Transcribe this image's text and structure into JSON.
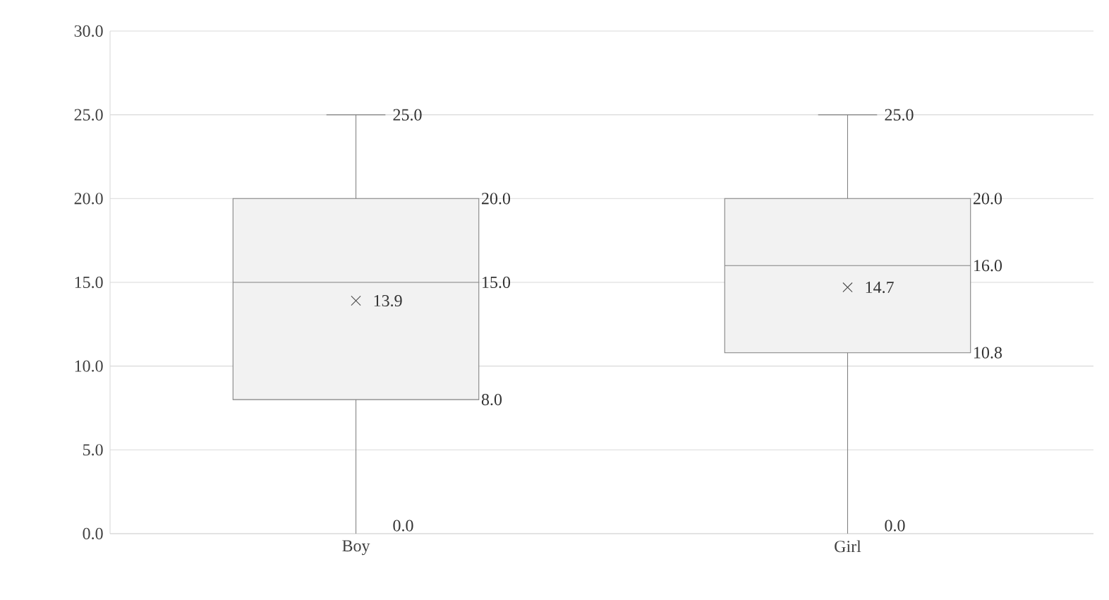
{
  "chart_data": {
    "type": "box",
    "categories": [
      "Boy",
      "Girl"
    ],
    "boxes": [
      {
        "low": 0,
        "q1": 8,
        "median": 15,
        "q3": 20,
        "high": 25,
        "mean": 13.9
      },
      {
        "low": 0,
        "q1": 10.8,
        "median": 16,
        "q3": 20,
        "high": 25,
        "mean": 14.7
      }
    ],
    "color": "#f2f2f2",
    "ylim": [
      0,
      30
    ],
    "yticks": [
      {
        "value": 0,
        "label": "0.0"
      },
      {
        "value": 5,
        "label": "5.0"
      },
      {
        "value": 10,
        "label": "10.0"
      },
      {
        "value": 15,
        "label": "15.0"
      },
      {
        "value": 20,
        "label": "20.0"
      },
      {
        "value": 25,
        "label": "25.0"
      },
      {
        "value": 30,
        "label": "30.0"
      }
    ],
    "annotations": [
      "25.0",
      "20.0",
      "15.0",
      "8.0",
      "0.0",
      "13.9",
      "25.0",
      "20.0",
      "16.0",
      "10.8",
      "0.0",
      "14.7"
    ],
    "grid": "y",
    "marker": "cross"
  }
}
